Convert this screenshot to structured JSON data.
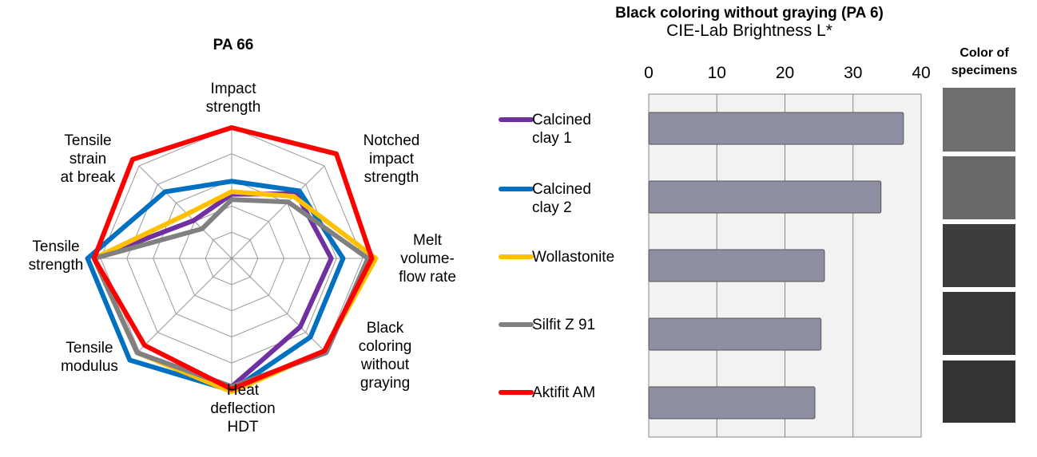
{
  "chart_data": [
    {
      "type": "radar",
      "title": "PA 66",
      "categories": [
        "Impact\nstrength",
        "Notched\nimpact\nstrength",
        "Melt\nvolume-\nflow rate",
        "Black\ncoloring\nwithout\ngraying",
        "Heat\ndeflection\nHDT",
        "Tensile\nmodulus",
        "Tensile\nstrength",
        "Tensile\nstrain\nat break"
      ],
      "rlim": [
        0,
        100
      ],
      "rticks": [
        20,
        40,
        60,
        80,
        100
      ],
      "grid": true,
      "series": [
        {
          "name": "Calcined\nclay 1",
          "color": "#7030a0",
          "values": [
            49,
            70,
            76,
            74,
            98,
            102,
            105,
            41
          ]
        },
        {
          "name": "Calcined\nclay 2",
          "color": "#0070c0",
          "values": [
            59,
            73,
            85,
            85,
            101,
            110,
            110,
            72
          ]
        },
        {
          "name": "Wollastonite",
          "color": "#ffc000",
          "values": [
            51,
            67,
            110,
            100,
            102,
            102,
            105,
            48
          ]
        },
        {
          "name": "Silfit Z 91",
          "color": "#808080",
          "values": [
            45,
            61,
            104,
            102,
            98,
            102,
            105,
            32
          ]
        },
        {
          "name": "Aktifit AM",
          "color": "#ff0000",
          "values": [
            100,
            113,
            107,
            100,
            100,
            94,
            105,
            107
          ]
        }
      ]
    },
    {
      "type": "hbar",
      "title": "Black coloring without graying (PA 6)",
      "subtitle": "CIE-Lab Brightness L*",
      "annotation": "Color of\nspecimens",
      "values": [
        37.4,
        34.1,
        25.8,
        25.3,
        24.4
      ],
      "color": "#8e8ea2",
      "xlim": [
        0,
        40
      ],
      "xticks": [
        0,
        10,
        20,
        30,
        40
      ],
      "grid": true
    }
  ]
}
